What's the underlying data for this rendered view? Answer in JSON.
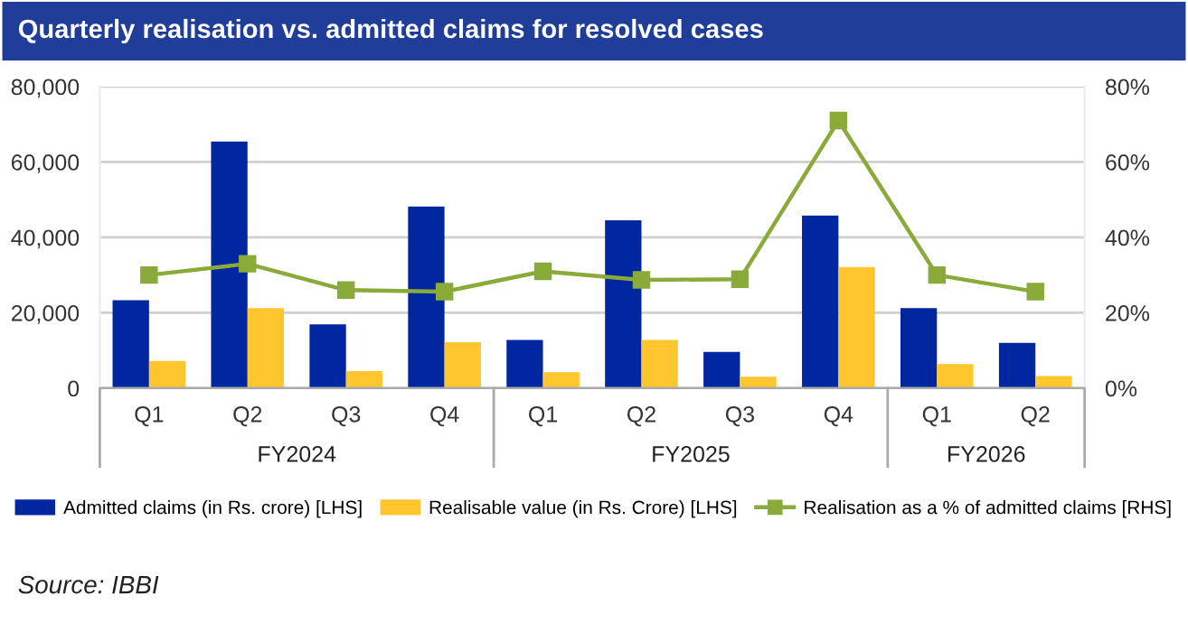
{
  "chart_data": {
    "type": "bar",
    "title": "Quarterly realisation vs. admitted claims for resolved cases",
    "categories": [
      "Q1",
      "Q2",
      "Q3",
      "Q4",
      "Q1",
      "Q2",
      "Q3",
      "Q4",
      "Q1",
      "Q2"
    ],
    "series": [
      {
        "name": "Admitted claims (in Rs. crore) [LHS]",
        "color": "#0026a0",
        "values": [
          23300,
          65400,
          16900,
          48200,
          12800,
          44500,
          9600,
          45800,
          21200,
          12000
        ]
      },
      {
        "name": "Realisable value (in Rs. Crore) [LHS]",
        "color": "#ffc62f",
        "values": [
          7200,
          21200,
          4500,
          12200,
          4200,
          12800,
          3000,
          32100,
          6400,
          3200
        ]
      },
      {
        "name": "Realisation as a % of admitted claims [RHS]",
        "type": "line",
        "axis": "y2",
        "color": "#8aaa3a",
        "marker": "square",
        "values": [
          30,
          33,
          26,
          25.6,
          31,
          28.7,
          28.9,
          71,
          30,
          25.6
        ]
      }
    ],
    "ylim": [
      0,
      80000
    ],
    "yticks": [
      {
        "value": 0,
        "label": "0"
      },
      {
        "value": 20000,
        "label": "20,000"
      },
      {
        "value": 40000,
        "label": "40,000"
      },
      {
        "value": 60000,
        "label": "60,000"
      },
      {
        "value": 80000,
        "label": "80,000"
      }
    ],
    "y2lim": [
      0,
      80
    ],
    "y2ticks": [
      {
        "value": 0,
        "label": "0%"
      },
      {
        "value": 20,
        "label": "20%"
      },
      {
        "value": 40,
        "label": "40%"
      },
      {
        "value": 60,
        "label": "60%"
      },
      {
        "value": 80,
        "label": "80%"
      }
    ],
    "grid": "y",
    "legend": "bottom",
    "annotations": [
      "FY2024",
      "FY2025",
      "FY2026",
      "Source: IBBI"
    ]
  }
}
